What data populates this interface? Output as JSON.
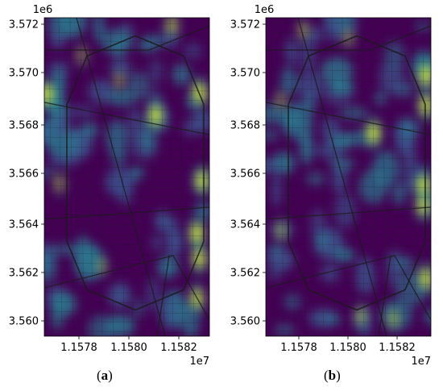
{
  "panels": [
    {
      "id": "a",
      "caption_open": "(",
      "caption_letter": "a",
      "caption_close": ")",
      "y_offset_label": "1e6",
      "x_offset_label": "1e7",
      "y_ticks": [
        "3.572",
        "3.570",
        "3.568",
        "3.566",
        "3.564",
        "3.562",
        "3.560"
      ],
      "x_ticks": [
        "1.1578",
        "1.1580",
        "1.1582"
      ],
      "hotspots": [
        {
          "x": 11577100,
          "y": 3569250,
          "level": 1.0
        },
        {
          "x": 11581450,
          "y": 3568400,
          "level": 1.0
        },
        {
          "x": 11583200,
          "y": 3569300,
          "level": 1.0
        },
        {
          "x": 11583300,
          "y": 3565800,
          "level": 0.95
        },
        {
          "x": 11583100,
          "y": 3563700,
          "level": 1.0
        },
        {
          "x": 11583200,
          "y": 3562700,
          "level": 0.95
        },
        {
          "x": 11583100,
          "y": 3561100,
          "level": 0.9
        },
        {
          "x": 11582100,
          "y": 3572000,
          "level": 0.7
        },
        {
          "x": 11578500,
          "y": 3570800,
          "level": 0.5
        },
        {
          "x": 11580000,
          "y": 3569800,
          "level": 0.5
        },
        {
          "x": 11577600,
          "y": 3565700,
          "level": 0.55
        },
        {
          "x": 11579300,
          "y": 3562400,
          "level": 0.45
        }
      ]
    },
    {
      "id": "b",
      "caption_open": "(",
      "caption_letter": "b",
      "caption_close": ")",
      "y_offset_label": "1e6",
      "x_offset_label": "1e7",
      "y_ticks": [
        "3.572",
        "3.570",
        "3.568",
        "3.566",
        "3.564",
        "3.562",
        "3.560"
      ],
      "x_ticks": [
        "1.1578",
        "1.1580",
        "1.1582"
      ],
      "hotspots": [
        {
          "x": 11583400,
          "y": 3570000,
          "level": 1.0
        },
        {
          "x": 11583400,
          "y": 3568800,
          "level": 0.95
        },
        {
          "x": 11581300,
          "y": 3567700,
          "level": 1.0
        },
        {
          "x": 11583300,
          "y": 3565600,
          "level": 1.0
        },
        {
          "x": 11583300,
          "y": 3564800,
          "level": 0.9
        },
        {
          "x": 11583400,
          "y": 3561900,
          "level": 0.95
        },
        {
          "x": 11580800,
          "y": 3560400,
          "level": 0.6
        },
        {
          "x": 11582100,
          "y": 3560300,
          "level": 0.6
        },
        {
          "x": 11578500,
          "y": 3571800,
          "level": 0.55
        },
        {
          "x": 11580300,
          "y": 3571500,
          "level": 0.5
        },
        {
          "x": 11577600,
          "y": 3569000,
          "level": 0.5
        },
        {
          "x": 11577600,
          "y": 3563800,
          "level": 0.55
        }
      ]
    }
  ],
  "colors": {
    "viridis_low": "#440154",
    "viridis_mid": "#21918c",
    "viridis_high": "#fde725",
    "road": "#1a1a1a"
  },
  "map_extent": {
    "x_range": [
      11577000,
      11583600
    ],
    "y_range": [
      3559600,
      3572300
    ]
  }
}
